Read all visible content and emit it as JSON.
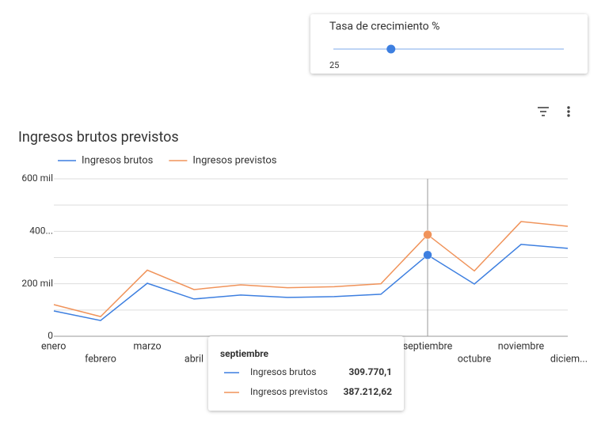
{
  "control": {
    "title": "Tasa de crecimiento %",
    "value": 25,
    "range": [
      0,
      100
    ]
  },
  "chart_data": {
    "type": "line",
    "title": "Ingresos brutos previstos",
    "categories": [
      "enero",
      "febrero",
      "marzo",
      "abril",
      null,
      null,
      null,
      null,
      "septiembre",
      "octubre",
      "noviembre",
      "diciem..."
    ],
    "series": [
      {
        "name": "Ingresos brutos",
        "color": "#3d7fe0",
        "values": [
          96500,
          60000,
          202000,
          142000,
          157000,
          148000,
          151000,
          160000,
          309770.1,
          199000,
          350000,
          335000
        ]
      },
      {
        "name": "Ingresos previstos",
        "color": "#f0935a",
        "values": [
          120600,
          75000,
          252000,
          178000,
          196000,
          185000,
          189000,
          200000,
          387212.62,
          249000,
          437000,
          419000
        ]
      }
    ],
    "ylim": [
      0,
      600000
    ],
    "yticks": [
      0,
      {
        "value": 200000,
        "label": "200 mil"
      },
      {
        "value": 400000,
        "label": "400..."
      },
      {
        "value": 600000,
        "label": "600 mil"
      }
    ],
    "minor_yticks": [
      100000,
      300000,
      500000
    ],
    "grid": true,
    "legend": "top",
    "tooltip": {
      "category": "septiembre",
      "entries": [
        {
          "name": "Ingresos brutos",
          "value": 309770.1,
          "label": "309.770,1"
        },
        {
          "name": "Ingresos previstos",
          "value": 387212.62,
          "label": "387.212,62"
        }
      ]
    }
  }
}
